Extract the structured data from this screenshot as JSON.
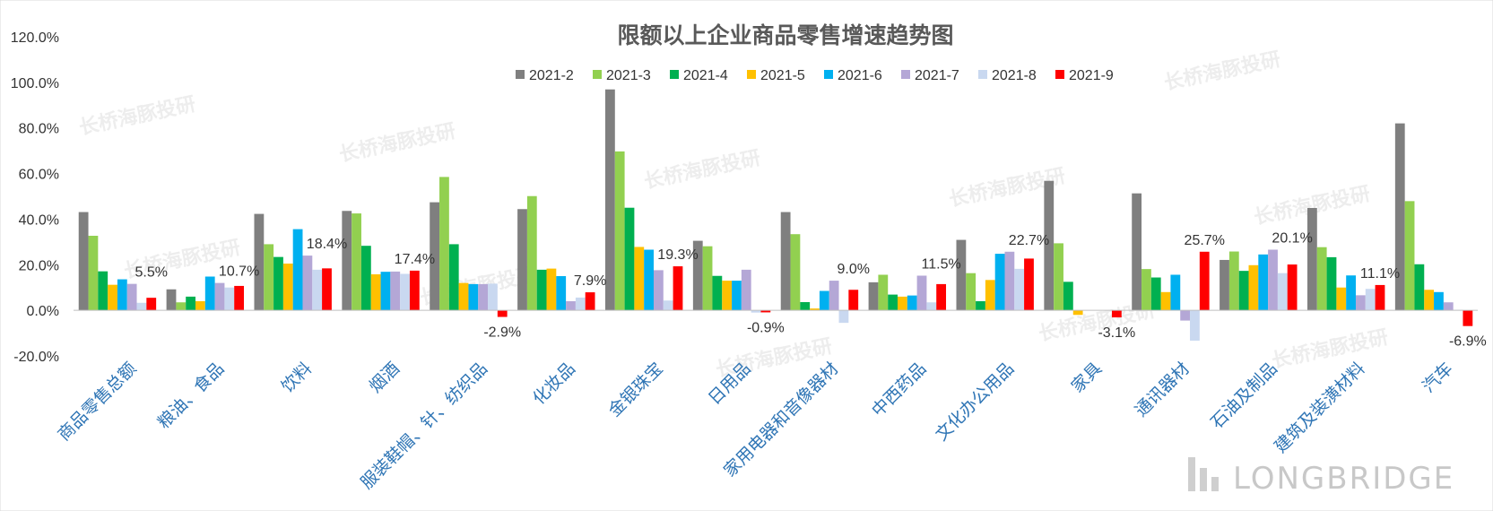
{
  "chart_data": {
    "type": "bar",
    "title": "限额以上企业商品零售增速趋势图",
    "xlabel": "",
    "ylabel": "",
    "ylim": [
      -20,
      120
    ],
    "yticks": [
      -20,
      0,
      20,
      40,
      60,
      80,
      100,
      120
    ],
    "ytick_labels": [
      "-20.0%",
      "0.0%",
      "20.0%",
      "40.0%",
      "60.0%",
      "80.0%",
      "100.0%",
      "120.0%"
    ],
    "legend_position": "top-center",
    "grid": false,
    "categories": [
      "商品零售总额",
      "粮油、食品",
      "饮料",
      "烟酒",
      "服装鞋帽、针、纺织品",
      "化妆品",
      "金银珠宝",
      "日用品",
      "家用电器和音像器材",
      "中西药品",
      "文化办公用品",
      "家具",
      "通讯器材",
      "石油及制品",
      "建筑及装潢材料",
      "汽车"
    ],
    "series": [
      {
        "name": "2021-2",
        "color": "#7F7F7F",
        "values": [
          43.1,
          9.2,
          42.3,
          43.6,
          47.4,
          44.4,
          96.9,
          30.5,
          43.1,
          12.3,
          30.9,
          56.8,
          51.3,
          22.1,
          44.9,
          82.0
        ]
      },
      {
        "name": "2021-3",
        "color": "#92D050",
        "values": [
          32.7,
          3.5,
          29.0,
          42.5,
          58.5,
          50.1,
          69.7,
          28.1,
          33.4,
          15.6,
          16.3,
          29.4,
          18.1,
          25.8,
          27.7,
          47.9
        ]
      },
      {
        "name": "2021-4",
        "color": "#00B050",
        "values": [
          17.1,
          6.0,
          23.4,
          28.3,
          29.0,
          17.8,
          45.0,
          15.1,
          3.6,
          6.9,
          4.0,
          12.5,
          14.4,
          17.3,
          23.3,
          20.2
        ]
      },
      {
        "name": "2021-5",
        "color": "#FFC000",
        "values": [
          11.2,
          4.0,
          20.5,
          15.8,
          12.0,
          18.3,
          27.8,
          13.0,
          0.8,
          6.0,
          13.3,
          -2.0,
          8.0,
          19.8,
          10.0,
          9.0
        ]
      },
      {
        "name": "2021-6",
        "color": "#00B0F0",
        "values": [
          13.6,
          14.8,
          35.6,
          16.9,
          11.5,
          15.0,
          26.6,
          13.0,
          8.5,
          6.5,
          24.8,
          0.0,
          15.6,
          24.5,
          15.3,
          8.0
        ]
      },
      {
        "name": "2021-7",
        "color": "#B4A7D6",
        "values": [
          11.6,
          12.0,
          24.0,
          17.0,
          11.5,
          4.0,
          17.6,
          17.8,
          13.0,
          15.2,
          25.7,
          0.0,
          -4.5,
          26.6,
          6.6,
          3.5
        ]
      },
      {
        "name": "2021-8",
        "color": "#C9D8F0",
        "values": [
          3.3,
          10.0,
          17.8,
          16.0,
          11.7,
          5.6,
          4.3,
          -1.0,
          -5.5,
          3.5,
          18.2,
          0.0,
          -13.3,
          16.3,
          9.4,
          0.2
        ]
      },
      {
        "name": "2021-9",
        "color": "#FF0000",
        "values": [
          5.5,
          10.7,
          18.4,
          17.4,
          -2.9,
          7.9,
          19.3,
          -0.9,
          9.0,
          11.5,
          22.7,
          -3.1,
          25.7,
          20.1,
          11.1,
          -6.9
        ]
      }
    ],
    "data_labels": [
      "5.5%",
      "10.7%",
      "18.4%",
      "17.4%",
      "-2.9%",
      "7.9%",
      "19.3%",
      "-0.9%",
      "9.0%",
      "11.5%",
      "22.7%",
      "-3.1%",
      "25.7%",
      "20.1%",
      "11.1%",
      "-6.9%"
    ],
    "watermark": "长桥海豚投研",
    "brand": "LONGBRIDGE"
  }
}
